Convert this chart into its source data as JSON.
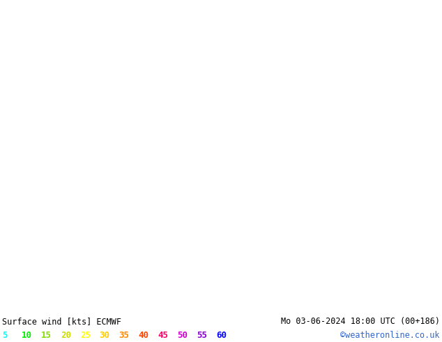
{
  "title_left": "Surface wind [kts] ECMWF",
  "title_right": "Mo 03-06-2024 18:00 UTC (00+186)",
  "credit": "©weatheronline.co.uk",
  "legend_values": [
    5,
    10,
    15,
    20,
    25,
    30,
    35,
    40,
    45,
    50,
    55,
    60
  ],
  "legend_colors": [
    "#00ffff",
    "#00ee00",
    "#88dd00",
    "#ccdd00",
    "#ffff00",
    "#ffcc00",
    "#ff8800",
    "#ff4400",
    "#ff0066",
    "#cc00cc",
    "#8800cc",
    "#0000ff"
  ],
  "colormap_levels": [
    0,
    5,
    10,
    15,
    20,
    25,
    30,
    35,
    40,
    45,
    50,
    55,
    60
  ],
  "colormap_colors": [
    "#aaffff",
    "#00ffff",
    "#00ee00",
    "#88dd00",
    "#ccdd00",
    "#ffff00",
    "#ffcc00",
    "#ff8800",
    "#ff4400",
    "#ff0066",
    "#cc00cc",
    "#8800cc"
  ],
  "background_color": "#ffffff",
  "figsize": [
    6.34,
    4.9
  ],
  "dpi": 100,
  "extent": [
    18.0,
    37.5,
    32.5,
    49.5
  ]
}
